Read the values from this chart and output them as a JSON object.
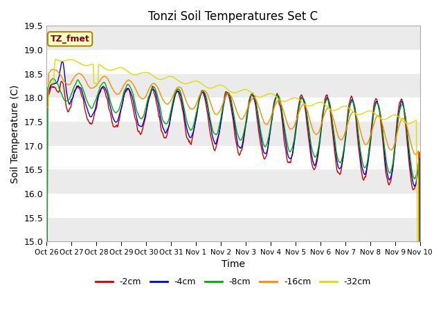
{
  "title": "Tonzi Soil Temperatures Set C",
  "ylabel": "Soil Temperature (C)",
  "xlabel": "Time",
  "annotation": "TZ_fmet",
  "ylim": [
    15.0,
    19.5
  ],
  "yticks": [
    15.0,
    15.5,
    16.0,
    16.5,
    17.0,
    17.5,
    18.0,
    18.5,
    19.0,
    19.5
  ],
  "xtick_labels": [
    "Oct 26",
    "Oct 27",
    "Oct 28",
    "Oct 29",
    "Oct 30",
    "Oct 31",
    "Nov 1",
    "Nov 2",
    "Nov 3",
    "Nov 4",
    "Nov 5",
    "Nov 6",
    "Nov 7",
    "Nov 8",
    "Nov 9",
    "Nov 10"
  ],
  "legend_entries": [
    "-2cm",
    "-4cm",
    "-8cm",
    "-16cm",
    "-32cm"
  ],
  "line_colors": [
    "#cc0000",
    "#0000cc",
    "#00aa00",
    "#ff8800",
    "#dddd00"
  ],
  "background_color": "#ffffff",
  "plot_bg_color": "#ffffff",
  "band_color_light": "#ebebeb",
  "n_points": 720,
  "title_fontsize": 12
}
